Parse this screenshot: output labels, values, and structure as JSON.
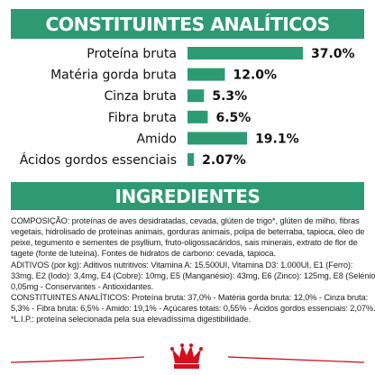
{
  "header": {
    "title": "CONSTITUINTES ANALÍTICOS"
  },
  "chart_data": {
    "type": "bar",
    "orientation": "horizontal",
    "title": "CONSTITUINTES ANALÍTICOS",
    "categories": [
      "Proteína bruta",
      "Matéria gorda bruta",
      "Cinza bruta",
      "Fibra bruta",
      "Amido",
      "Ácidos gordos essenciais"
    ],
    "values": [
      37.0,
      12.0,
      5.3,
      6.5,
      19.1,
      2.07
    ],
    "value_labels": [
      "37.0%",
      "12.0%",
      "5.3%",
      "6.5%",
      "19.1%",
      "2.07%"
    ],
    "xlim": [
      0,
      37.0
    ],
    "grid": false,
    "bar_color": "#2e9a74"
  },
  "ingredients": {
    "title": "INGREDIENTES",
    "lines": [
      "COMPOSIÇÃO: proteínas de aves desidratadas, cevada, glúten de trigo*, glúten de milho, fibras",
      "vegetais, hidrolisado de proteínas animais, gorduras animais, polpa de beterraba, tapioca, óleo de",
      "peixe, tegumento e sementes de psyllium, fruto-oligossacáridos, sais minerais, extrato de flor de",
      "tagete (fonte de luteína). Fontes de hidratos de carbono: cevada, tapioca.",
      "ADITIVOS (por kg): Aditivos nutritivos: Vitamina A: 15.500UI, Vitamina D3: 1.000UI, E1 (Ferro):",
      "33mg, E2 (Iodo): 3,4mg, E4 (Cobre): 10mg, E5 (Manganésio): 43mg, E6 (Zinco): 125mg, E8 (Selénio):",
      "0,05mg - Conservantes - Antioxidantes.",
      "CONSTITUINTES ANALÍTICOS: Proteína bruta: 37,0% - Matéria gorda bruta: 12,0% - Cinza bruta:",
      "5,3% - Fibra bruta: 6,5% - Amido: 19,1% - Açúcares totais: 0,55% - Ácidos gordos essenciais: 2,07%.",
      "*L.I.P.: proteína selecionada pela sua elevadíssima digestibilidade."
    ]
  },
  "colors": {
    "brand_green": "#2e9a74",
    "logo_red": "#d2101e",
    "text": "#111111"
  },
  "footer": {
    "logo": "Royal Canin crown logo",
    "logo_icon": "crown-icon"
  }
}
